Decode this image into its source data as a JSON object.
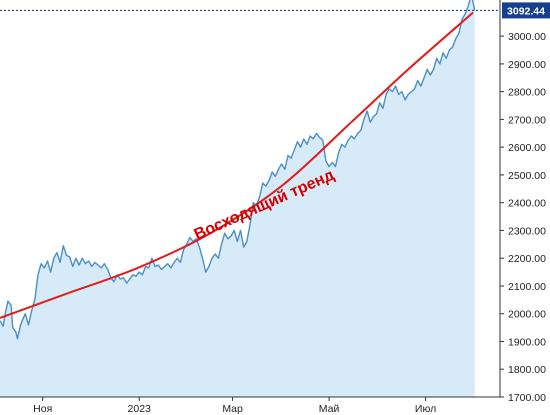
{
  "chart_data": {
    "type": "area",
    "title": "",
    "xlabel": "",
    "ylabel": "",
    "ylim": [
      1700,
      3130
    ],
    "x_range": [
      "2022-10-05",
      "2023-08-17"
    ],
    "y_ticks": [
      "1700.00",
      "1800.00",
      "1900.00",
      "2000.00",
      "2100.00",
      "2200.00",
      "2300.00",
      "2400.00",
      "2500.00",
      "2600.00",
      "2700.00",
      "2800.00",
      "2900.00",
      "3000.00"
    ],
    "x_ticks": [
      {
        "date": "2022-11-01",
        "label": "Ноя"
      },
      {
        "date": "2023-01-01",
        "label": "2023"
      },
      {
        "date": "2023-03-01",
        "label": "Мар"
      },
      {
        "date": "2023-05-01",
        "label": "Май"
      },
      {
        "date": "2023-07-01",
        "label": "Июл"
      }
    ],
    "grid": false,
    "colors": {
      "line": "#4a8fc6",
      "area": "#d6eaf8",
      "trend": "#e01c1c",
      "badge": "#163f8f",
      "last_price_line": "#1a2e6e"
    },
    "series": [
      {
        "points": [
          [
            "2022-10-05",
            1975
          ],
          [
            "2022-10-07",
            1955
          ],
          [
            "2022-10-08",
            1990
          ],
          [
            "2022-10-10",
            2045
          ],
          [
            "2022-10-12",
            2030
          ],
          [
            "2022-10-13",
            1950
          ],
          [
            "2022-10-15",
            1935
          ],
          [
            "2022-10-16",
            1910
          ],
          [
            "2022-10-18",
            1960
          ],
          [
            "2022-10-19",
            1975
          ],
          [
            "2022-10-21",
            2000
          ],
          [
            "2022-10-23",
            1960
          ],
          [
            "2022-10-25",
            2010
          ],
          [
            "2022-10-27",
            2050
          ],
          [
            "2022-10-29",
            2140
          ],
          [
            "2022-10-31",
            2180
          ],
          [
            "2022-11-02",
            2165
          ],
          [
            "2022-11-04",
            2190
          ],
          [
            "2022-11-06",
            2150
          ],
          [
            "2022-11-08",
            2200
          ],
          [
            "2022-11-10",
            2220
          ],
          [
            "2022-11-12",
            2185
          ],
          [
            "2022-11-14",
            2245
          ],
          [
            "2022-11-16",
            2210
          ],
          [
            "2022-11-18",
            2205
          ],
          [
            "2022-11-20",
            2170
          ],
          [
            "2022-11-22",
            2200
          ],
          [
            "2022-11-24",
            2175
          ],
          [
            "2022-11-26",
            2200
          ],
          [
            "2022-11-28",
            2180
          ],
          [
            "2022-11-30",
            2190
          ],
          [
            "2022-12-02",
            2170
          ],
          [
            "2022-12-04",
            2185
          ],
          [
            "2022-12-06",
            2175
          ],
          [
            "2022-12-08",
            2165
          ],
          [
            "2022-12-10",
            2180
          ],
          [
            "2022-12-12",
            2160
          ],
          [
            "2022-12-14",
            2130
          ],
          [
            "2022-12-16",
            2115
          ],
          [
            "2022-12-18",
            2140
          ],
          [
            "2022-12-20",
            2125
          ],
          [
            "2022-12-22",
            2130
          ],
          [
            "2022-12-24",
            2110
          ],
          [
            "2022-12-26",
            2125
          ],
          [
            "2022-12-28",
            2140
          ],
          [
            "2022-12-30",
            2135
          ],
          [
            "2023-01-01",
            2150
          ],
          [
            "2023-01-03",
            2140
          ],
          [
            "2023-01-05",
            2170
          ],
          [
            "2023-01-07",
            2165
          ],
          [
            "2023-01-09",
            2200
          ],
          [
            "2023-01-11",
            2170
          ],
          [
            "2023-01-13",
            2175
          ],
          [
            "2023-01-15",
            2160
          ],
          [
            "2023-01-17",
            2170
          ],
          [
            "2023-01-19",
            2180
          ],
          [
            "2023-01-21",
            2165
          ],
          [
            "2023-01-23",
            2185
          ],
          [
            "2023-01-25",
            2200
          ],
          [
            "2023-01-27",
            2185
          ],
          [
            "2023-01-29",
            2230
          ],
          [
            "2023-01-31",
            2250
          ],
          [
            "2023-02-02",
            2275
          ],
          [
            "2023-02-04",
            2260
          ],
          [
            "2023-02-06",
            2270
          ],
          [
            "2023-02-08",
            2240
          ],
          [
            "2023-02-10",
            2200
          ],
          [
            "2023-02-12",
            2150
          ],
          [
            "2023-02-14",
            2170
          ],
          [
            "2023-02-16",
            2200
          ],
          [
            "2023-02-18",
            2215
          ],
          [
            "2023-02-20",
            2200
          ],
          [
            "2023-02-22",
            2250
          ],
          [
            "2023-02-24",
            2290
          ],
          [
            "2023-02-26",
            2270
          ],
          [
            "2023-02-28",
            2280
          ],
          [
            "2023-03-02",
            2300
          ],
          [
            "2023-03-04",
            2260
          ],
          [
            "2023-03-06",
            2300
          ],
          [
            "2023-03-08",
            2240
          ],
          [
            "2023-03-10",
            2260
          ],
          [
            "2023-03-12",
            2320
          ],
          [
            "2023-03-14",
            2400
          ],
          [
            "2023-03-16",
            2390
          ],
          [
            "2023-03-18",
            2420
          ],
          [
            "2023-03-20",
            2470
          ],
          [
            "2023-03-22",
            2460
          ],
          [
            "2023-03-24",
            2480
          ],
          [
            "2023-03-26",
            2510
          ],
          [
            "2023-03-28",
            2495
          ],
          [
            "2023-03-30",
            2520
          ],
          [
            "2023-04-01",
            2540
          ],
          [
            "2023-04-03",
            2520
          ],
          [
            "2023-04-05",
            2570
          ],
          [
            "2023-04-07",
            2560
          ],
          [
            "2023-04-09",
            2590
          ],
          [
            "2023-04-11",
            2620
          ],
          [
            "2023-04-13",
            2600
          ],
          [
            "2023-04-15",
            2630
          ],
          [
            "2023-04-17",
            2610
          ],
          [
            "2023-04-19",
            2640
          ],
          [
            "2023-04-21",
            2630
          ],
          [
            "2023-04-23",
            2650
          ],
          [
            "2023-04-25",
            2635
          ],
          [
            "2023-04-27",
            2625
          ],
          [
            "2023-04-29",
            2550
          ],
          [
            "2023-05-01",
            2530
          ],
          [
            "2023-05-03",
            2545
          ],
          [
            "2023-05-05",
            2530
          ],
          [
            "2023-05-07",
            2580
          ],
          [
            "2023-05-09",
            2610
          ],
          [
            "2023-05-11",
            2600
          ],
          [
            "2023-05-13",
            2625
          ],
          [
            "2023-05-15",
            2640
          ],
          [
            "2023-05-17",
            2630
          ],
          [
            "2023-05-19",
            2650
          ],
          [
            "2023-05-21",
            2660
          ],
          [
            "2023-05-23",
            2700
          ],
          [
            "2023-05-25",
            2730
          ],
          [
            "2023-05-27",
            2690
          ],
          [
            "2023-05-29",
            2710
          ],
          [
            "2023-05-31",
            2720
          ],
          [
            "2023-06-02",
            2760
          ],
          [
            "2023-06-04",
            2740
          ],
          [
            "2023-06-06",
            2790
          ],
          [
            "2023-06-08",
            2810
          ],
          [
            "2023-06-10",
            2800
          ],
          [
            "2023-06-12",
            2820
          ],
          [
            "2023-06-14",
            2790
          ],
          [
            "2023-06-16",
            2800
          ],
          [
            "2023-06-18",
            2770
          ],
          [
            "2023-06-20",
            2790
          ],
          [
            "2023-06-22",
            2800
          ],
          [
            "2023-06-24",
            2810
          ],
          [
            "2023-06-26",
            2840
          ],
          [
            "2023-06-28",
            2820
          ],
          [
            "2023-06-30",
            2850
          ],
          [
            "2023-07-02",
            2880
          ],
          [
            "2023-07-04",
            2860
          ],
          [
            "2023-07-06",
            2880
          ],
          [
            "2023-07-08",
            2920
          ],
          [
            "2023-07-10",
            2900
          ],
          [
            "2023-07-12",
            2940
          ],
          [
            "2023-07-14",
            2920
          ],
          [
            "2023-07-16",
            2950
          ],
          [
            "2023-07-18",
            2960
          ],
          [
            "2023-07-20",
            2990
          ],
          [
            "2023-07-22",
            3010
          ],
          [
            "2023-07-24",
            3060
          ],
          [
            "2023-07-26",
            3080
          ],
          [
            "2023-07-28",
            3110
          ],
          [
            "2023-07-30",
            3150
          ],
          [
            "2023-08-01",
            3092.44
          ]
        ]
      }
    ],
    "trend_line": {
      "label": "Восходящий тренд",
      "points": [
        [
          "2022-10-05",
          1985
        ],
        [
          "2022-11-15",
          2070
        ],
        [
          "2022-12-31",
          2165
        ],
        [
          "2023-02-15",
          2290
        ],
        [
          "2023-04-01",
          2460
        ],
        [
          "2023-05-15",
          2690
        ],
        [
          "2023-06-20",
          2880
        ],
        [
          "2023-07-31",
          3085
        ]
      ]
    },
    "last_value": {
      "label": "3092.44",
      "value": 3092.44
    }
  }
}
